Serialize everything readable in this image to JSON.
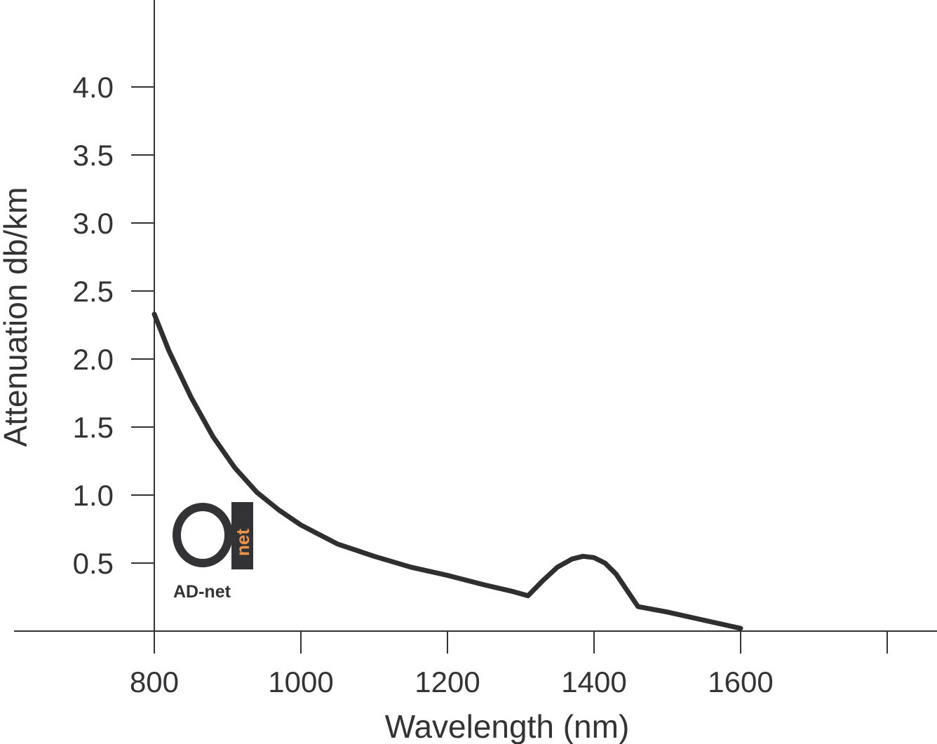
{
  "chart_data": {
    "type": "line",
    "xlabel": "Wavelength (nm)",
    "ylabel": "Attenuation db/km",
    "xlim": [
      800,
      1800
    ],
    "ylim": [
      0,
      4.0
    ],
    "x_ticks": [
      800,
      1000,
      1200,
      1400,
      1600,
      1800
    ],
    "x_tick_labels": [
      "800",
      "1000",
      "1200",
      "1400",
      "1600",
      ""
    ],
    "y_ticks": [
      0.5,
      1.0,
      1.5,
      2.0,
      2.5,
      3.0,
      3.5,
      4.0
    ],
    "y_tick_labels": [
      "0.5",
      "1.0",
      "1.5",
      "2.0",
      "2.5",
      "3.0",
      "3.5",
      "4.0"
    ],
    "grid": false,
    "series": [
      {
        "color": "#2f2f30",
        "x": [
          800,
          820,
          850,
          880,
          910,
          940,
          970,
          1000,
          1050,
          1100,
          1150,
          1200,
          1250,
          1290,
          1310,
          1330,
          1350,
          1370,
          1385,
          1400,
          1415,
          1430,
          1445,
          1460,
          1500,
          1550,
          1600
        ],
        "y": [
          2.33,
          2.06,
          1.72,
          1.43,
          1.2,
          1.02,
          0.89,
          0.78,
          0.64,
          0.55,
          0.47,
          0.41,
          0.34,
          0.29,
          0.26,
          0.37,
          0.47,
          0.53,
          0.55,
          0.54,
          0.5,
          0.42,
          0.3,
          0.18,
          0.14,
          0.08,
          0.02
        ]
      }
    ]
  },
  "logo": {
    "text": "AD-net",
    "badge_text": "net",
    "accent_color": "#e8944e"
  }
}
